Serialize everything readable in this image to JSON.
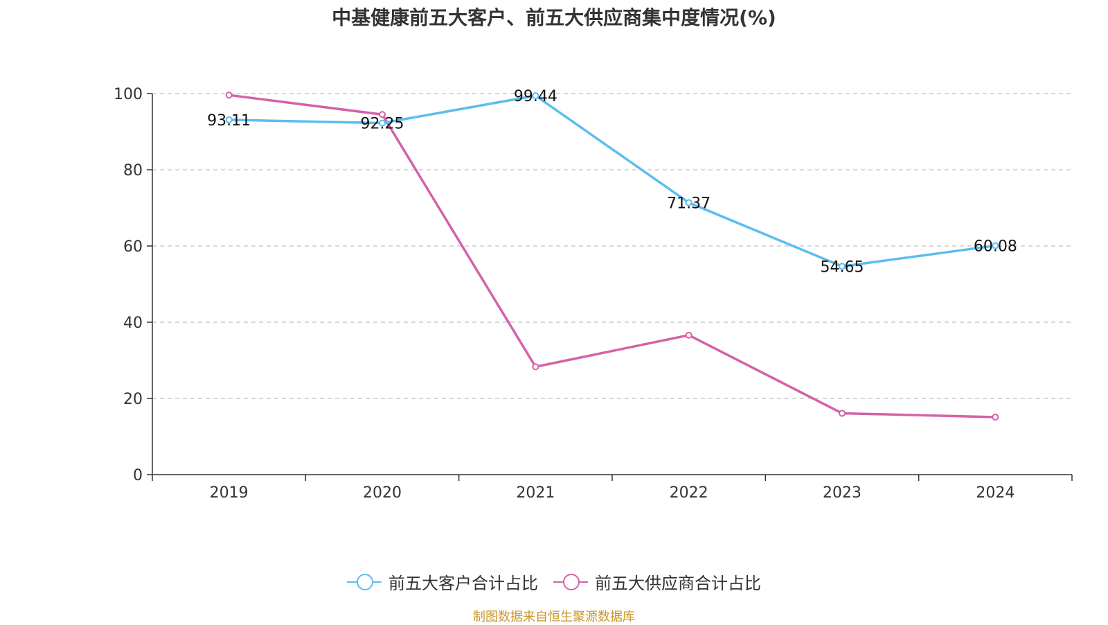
{
  "chart_data": {
    "type": "line",
    "title": "中基健康前五大客户、前五大供应商集中度情况(%)",
    "categories": [
      "2019",
      "2020",
      "2021",
      "2022",
      "2023",
      "2024"
    ],
    "ylim": [
      0,
      100
    ],
    "yticks": [
      "0",
      "20",
      "40",
      "60",
      "80",
      "100"
    ],
    "grid": true,
    "legend_position": "bottom",
    "series": [
      {
        "name": "前五大客户合计占比",
        "color": "#5bbdf0",
        "values": [
          93.11,
          92.25,
          99.44,
          71.37,
          54.65,
          60.08
        ],
        "labels": [
          "93.11",
          "92.25",
          "99.44",
          "71.37",
          "54.65",
          "60.08"
        ]
      },
      {
        "name": "前五大供应商合计占比",
        "color": "#d462a8",
        "values": [
          99.6,
          94.5,
          28.3,
          36.6,
          16.1,
          15.1
        ]
      }
    ]
  },
  "legend": {
    "items": [
      {
        "label": "前五大客户合计占比",
        "color": "#5bbdf0"
      },
      {
        "label": "前五大供应商合计占比",
        "color": "#d462a8"
      }
    ]
  },
  "source": {
    "text": "制图数据来自恒生聚源数据库"
  }
}
